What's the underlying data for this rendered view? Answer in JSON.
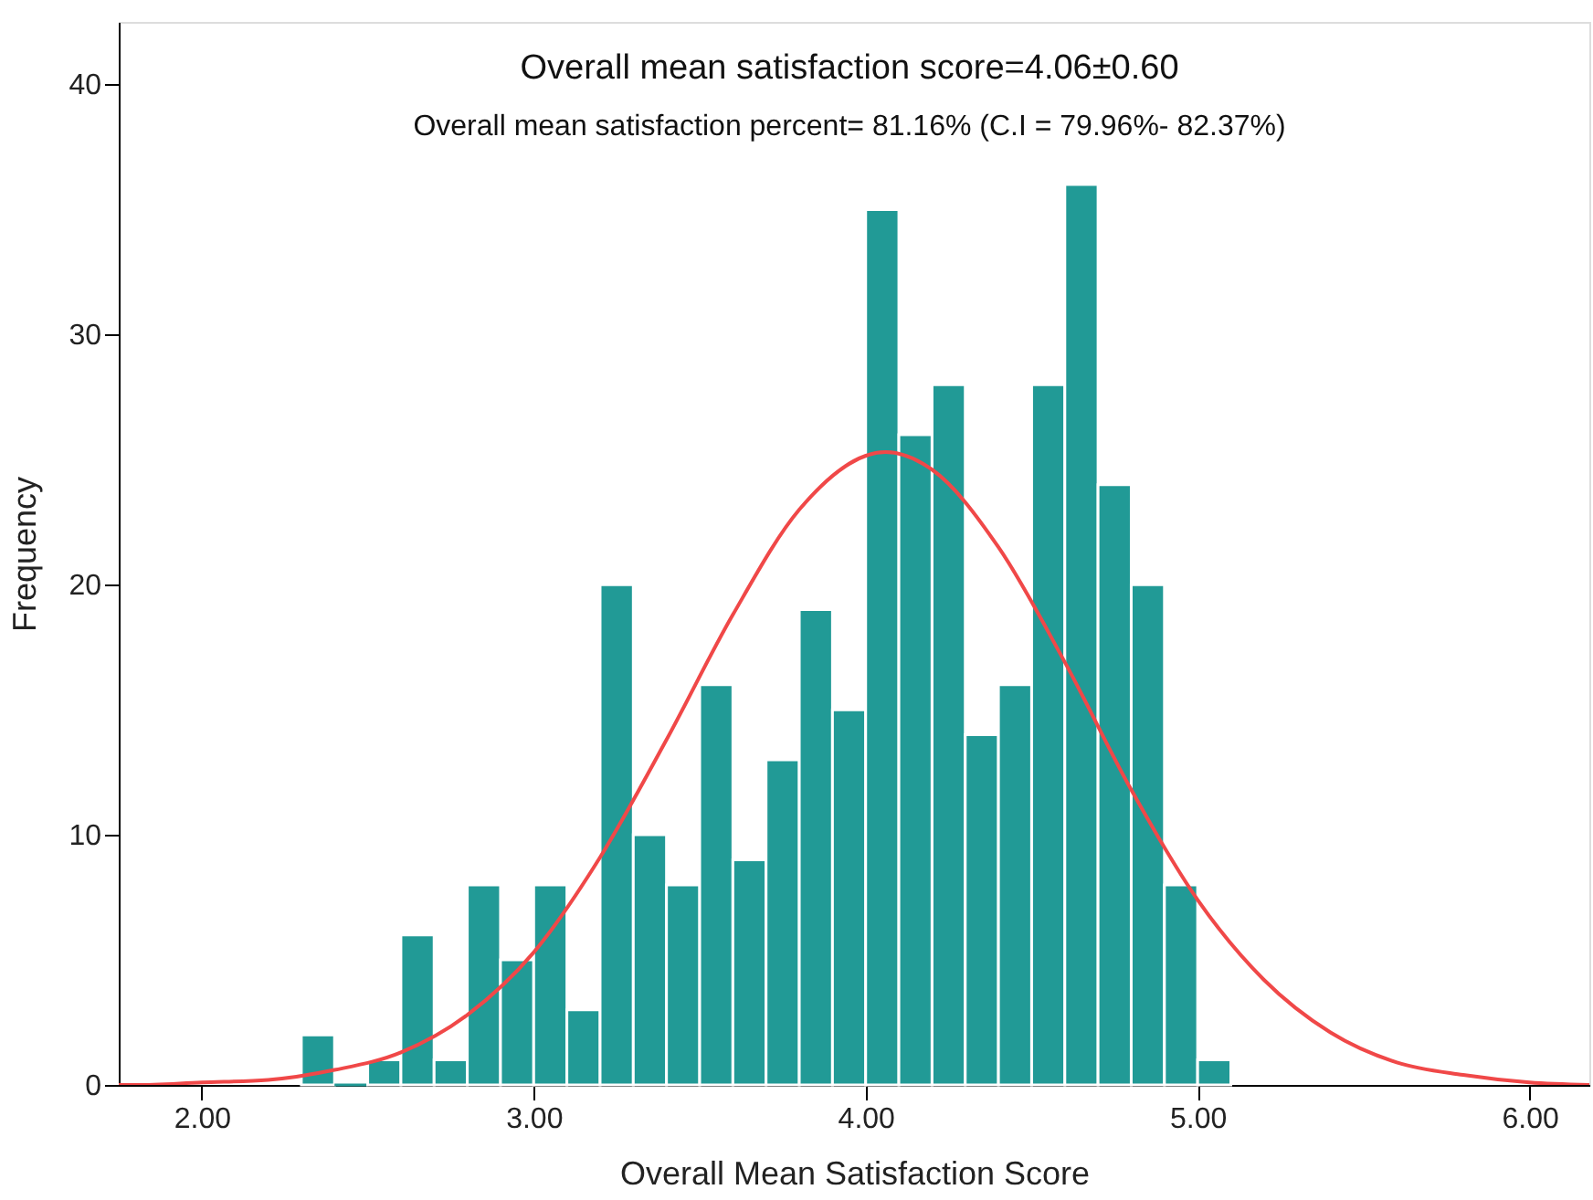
{
  "chart_data": {
    "type": "histogram",
    "annotations": [
      "Overall mean satisfaction score=4.06±0.60",
      "Overall mean satisfaction percent= 81.16% (C.I = 79.96%- 82.37%)"
    ],
    "xlabel": "Overall Mean Satisfaction Score",
    "ylabel": "Frequency",
    "series": [
      {
        "color": "#219a96",
        "bins": [
          2.3,
          2.4,
          2.5,
          2.6,
          2.7,
          2.8,
          2.9,
          3.0,
          3.1,
          3.2,
          3.3,
          3.4,
          3.5,
          3.6,
          3.7,
          3.8,
          3.9,
          4.0,
          4.1,
          4.2,
          4.3,
          4.4,
          4.5,
          4.6,
          4.7,
          4.8,
          4.9,
          5.0,
          5.1
        ],
        "values": [
          2,
          0,
          1,
          6,
          1,
          8,
          5,
          8,
          3,
          20,
          10,
          8,
          16,
          9,
          13,
          19,
          15,
          35,
          26,
          28,
          14,
          16,
          28,
          36,
          24,
          20,
          8,
          1
        ]
      },
      {
        "type": "line",
        "color": "#f04848",
        "x": [
          1.75,
          1.8,
          2.0,
          2.2,
          2.4,
          2.6,
          2.8,
          3.0,
          3.2,
          3.4,
          3.6,
          3.8,
          4.06,
          4.2,
          4.4,
          4.6,
          4.8,
          5.0,
          5.2,
          5.4,
          5.6,
          5.8,
          6.0,
          6.18
        ],
        "values": [
          0.0,
          0.0,
          0.1,
          0.2,
          0.6,
          1.3,
          2.8,
          5.3,
          9.1,
          13.8,
          18.8,
          23.0,
          25.3,
          24.6,
          21.5,
          16.9,
          11.8,
          7.4,
          4.2,
          2.1,
          0.9,
          0.4,
          0.1,
          0.0
        ]
      }
    ],
    "xlim": [
      1.75,
      6.18
    ],
    "ylim": [
      0,
      42.5
    ],
    "xticks": [
      {
        "value": 2,
        "label": "2.00"
      },
      {
        "value": 3,
        "label": "3.00"
      },
      {
        "value": 4,
        "label": "4.00"
      },
      {
        "value": 5,
        "label": "5.00"
      },
      {
        "value": 6,
        "label": "6.00"
      }
    ],
    "yticks": [
      0,
      10,
      20,
      30,
      40
    ],
    "grid": false
  }
}
